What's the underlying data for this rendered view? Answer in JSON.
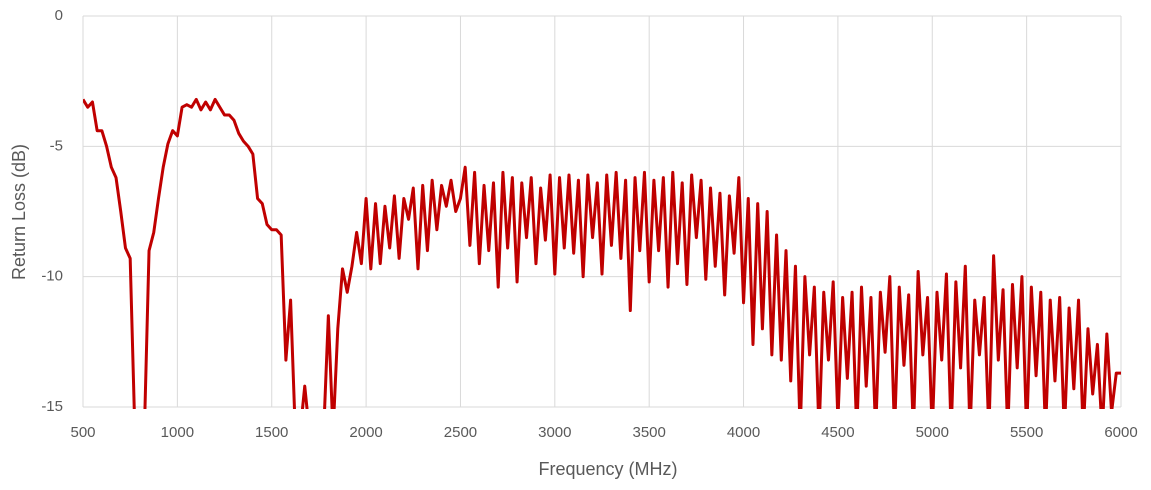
{
  "chart_data": {
    "type": "line",
    "x_label": "Frequency (MHz)",
    "y_label": "Return Loss (dB)",
    "x": [
      500,
      525,
      550,
      575,
      600,
      625,
      650,
      675,
      700,
      725,
      750,
      775,
      800,
      825,
      850,
      875,
      900,
      925,
      950,
      975,
      1000,
      1025,
      1050,
      1075,
      1100,
      1125,
      1150,
      1175,
      1200,
      1225,
      1250,
      1275,
      1300,
      1325,
      1350,
      1375,
      1400,
      1425,
      1450,
      1475,
      1500,
      1525,
      1550,
      1575,
      1600,
      1625,
      1650,
      1675,
      1700,
      1725,
      1750,
      1775,
      1800,
      1825,
      1850,
      1875,
      1900,
      1925,
      1950,
      1975,
      2000,
      2025,
      2050,
      2075,
      2100,
      2125,
      2150,
      2175,
      2200,
      2225,
      2250,
      2275,
      2300,
      2325,
      2350,
      2375,
      2400,
      2425,
      2450,
      2475,
      2500,
      2525,
      2550,
      2575,
      2600,
      2625,
      2650,
      2675,
      2700,
      2725,
      2750,
      2775,
      2800,
      2825,
      2850,
      2875,
      2900,
      2925,
      2950,
      2975,
      3000,
      3025,
      3050,
      3075,
      3100,
      3125,
      3150,
      3175,
      3200,
      3225,
      3250,
      3275,
      3300,
      3325,
      3350,
      3375,
      3400,
      3425,
      3450,
      3475,
      3500,
      3525,
      3550,
      3575,
      3600,
      3625,
      3650,
      3675,
      3700,
      3725,
      3750,
      3775,
      3800,
      3825,
      3850,
      3875,
      3900,
      3925,
      3950,
      3975,
      4000,
      4025,
      4050,
      4075,
      4100,
      4125,
      4150,
      4175,
      4200,
      4225,
      4250,
      4275,
      4300,
      4325,
      4350,
      4375,
      4400,
      4425,
      4450,
      4475,
      4500,
      4525,
      4550,
      4575,
      4600,
      4625,
      4650,
      4675,
      4700,
      4725,
      4750,
      4775,
      4800,
      4825,
      4850,
      4875,
      4900,
      4925,
      4950,
      4975,
      5000,
      5025,
      5050,
      5075,
      5100,
      5125,
      5150,
      5175,
      5200,
      5225,
      5250,
      5275,
      5300,
      5325,
      5350,
      5375,
      5400,
      5425,
      5450,
      5475,
      5500,
      5525,
      5550,
      5575,
      5600,
      5625,
      5650,
      5675,
      5700,
      5725,
      5750,
      5775,
      5800,
      5825,
      5850,
      5875,
      5900,
      5925,
      5950,
      5975,
      6000
    ],
    "values": [
      -3.2,
      -3.5,
      -3.3,
      -4.4,
      -4.4,
      -5.0,
      -5.8,
      -6.2,
      -7.5,
      -8.9,
      -9.3,
      -16,
      -16,
      -16,
      -9.0,
      -8.3,
      -7.0,
      -5.8,
      -4.9,
      -4.4,
      -4.6,
      -3.5,
      -3.4,
      -3.5,
      -3.2,
      -3.6,
      -3.3,
      -3.6,
      -3.2,
      -3.5,
      -3.8,
      -3.8,
      -4.0,
      -4.5,
      -4.8,
      -5.0,
      -5.3,
      -7.0,
      -7.2,
      -8.0,
      -8.2,
      -8.2,
      -8.4,
      -13.2,
      -10.9,
      -16,
      -16,
      -14.2,
      -16,
      -16,
      -16,
      -16,
      -11.5,
      -16,
      -12.0,
      -9.7,
      -10.6,
      -9.6,
      -8.3,
      -9.5,
      -7.0,
      -9.7,
      -7.2,
      -9.5,
      -7.3,
      -8.9,
      -6.9,
      -9.3,
      -7.0,
      -7.8,
      -6.6,
      -9.7,
      -6.5,
      -9.0,
      -6.3,
      -8.2,
      -6.5,
      -7.3,
      -6.3,
      -7.5,
      -7.0,
      -5.8,
      -8.8,
      -6.0,
      -9.5,
      -6.5,
      -9.0,
      -6.4,
      -10.4,
      -6.0,
      -8.9,
      -6.2,
      -10.2,
      -6.4,
      -8.5,
      -6.2,
      -9.5,
      -6.6,
      -8.6,
      -6.1,
      -9.9,
      -6.2,
      -8.9,
      -6.1,
      -9.1,
      -6.3,
      -10.0,
      -6.1,
      -8.5,
      -6.4,
      -9.9,
      -6.1,
      -8.8,
      -6.0,
      -9.3,
      -6.3,
      -11.3,
      -6.2,
      -9.0,
      -6.0,
      -10.2,
      -6.3,
      -9.0,
      -6.2,
      -10.4,
      -6.0,
      -9.5,
      -6.4,
      -10.3,
      -6.1,
      -8.5,
      -6.3,
      -10.1,
      -6.6,
      -9.6,
      -6.8,
      -10.7,
      -6.9,
      -9.1,
      -6.2,
      -11.0,
      -7.0,
      -12.6,
      -7.2,
      -12.0,
      -7.5,
      -13.0,
      -8.4,
      -13.2,
      -9.0,
      -14.0,
      -9.6,
      -16,
      -10.0,
      -13.0,
      -10.4,
      -16,
      -10.6,
      -13.2,
      -10.2,
      -15.5,
      -10.8,
      -13.9,
      -10.6,
      -16,
      -10.4,
      -14.2,
      -10.8,
      -16,
      -10.6,
      -12.9,
      -10.0,
      -16,
      -10.4,
      -13.4,
      -10.7,
      -16,
      -9.8,
      -13.0,
      -10.8,
      -16,
      -10.6,
      -13.2,
      -9.9,
      -16,
      -10.2,
      -13.5,
      -9.6,
      -16,
      -10.9,
      -13.0,
      -10.8,
      -16,
      -9.2,
      -13.2,
      -10.5,
      -16,
      -10.3,
      -13.5,
      -10.0,
      -16,
      -10.4,
      -13.8,
      -10.6,
      -16,
      -10.9,
      -14.0,
      -10.8,
      -16,
      -11.2,
      -14.3,
      -10.9,
      -16,
      -12.0,
      -14.5,
      -12.6,
      -16,
      -12.2,
      -15.2,
      -13.7,
      -13.7
    ],
    "color": "#c00000",
    "xlim": [
      500,
      6000
    ],
    "xticks": [
      500,
      1000,
      1500,
      2000,
      2500,
      3000,
      3500,
      4000,
      4500,
      5000,
      5500,
      6000
    ],
    "ylim": [
      -15,
      0
    ],
    "yticks": [
      0,
      -5,
      -10,
      -15
    ],
    "grid": true
  }
}
